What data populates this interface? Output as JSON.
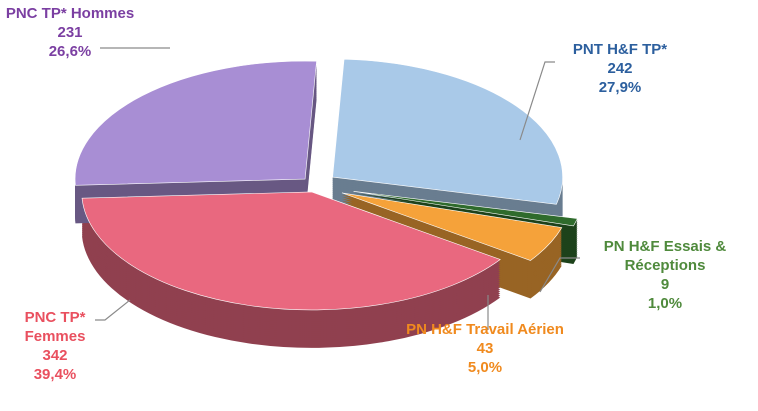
{
  "chart_data": {
    "type": "pie",
    "categories": [
      "PNT H&F TP*",
      "PN H&F Essais & Réceptions",
      "PN H&F Travail Aérien",
      "PNC TP* Femmes",
      "PNC TP* Hommes"
    ],
    "values": [
      242,
      9,
      43,
      342,
      231
    ],
    "percentages": [
      27.9,
      1.0,
      5.0,
      39.4,
      26.6
    ],
    "percentage_labels": [
      "27,9%",
      "1,0%",
      "5,0%",
      "39,4%",
      "26,6%"
    ],
    "colors": [
      "#a9c9e8",
      "#2f6b2c",
      "#f5a23a",
      "#e9687f",
      "#a88ed4"
    ],
    "label_colors": [
      "#2c5f9e",
      "#4f8a3c",
      "#f08a1e",
      "#e9505f",
      "#7b3fa2"
    ]
  }
}
